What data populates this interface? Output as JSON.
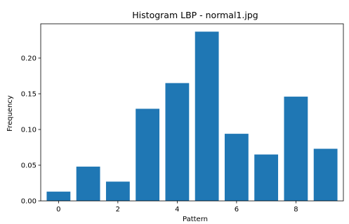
{
  "chart_data": {
    "type": "bar",
    "title": "Histogram LBP - normal1.jpg",
    "xlabel": "Pattern",
    "ylabel": "Frequency",
    "x": [
      0,
      1,
      2,
      3,
      4,
      5,
      6,
      7,
      8,
      9
    ],
    "values": [
      0.013,
      0.048,
      0.027,
      0.129,
      0.165,
      0.237,
      0.094,
      0.065,
      0.146,
      0.073
    ],
    "xlim": [
      -0.6,
      9.6
    ],
    "ylim": [
      0,
      0.248
    ],
    "xticks": [
      0,
      2,
      4,
      6,
      8
    ],
    "xtick_labels": [
      "0",
      "2",
      "4",
      "6",
      "8"
    ],
    "yticks": [
      0.0,
      0.05,
      0.1,
      0.15,
      0.2
    ],
    "ytick_labels": [
      "0.00",
      "0.05",
      "0.10",
      "0.15",
      "0.20"
    ],
    "bar_color": "#1f77b4",
    "grid": false,
    "legend": "none"
  }
}
